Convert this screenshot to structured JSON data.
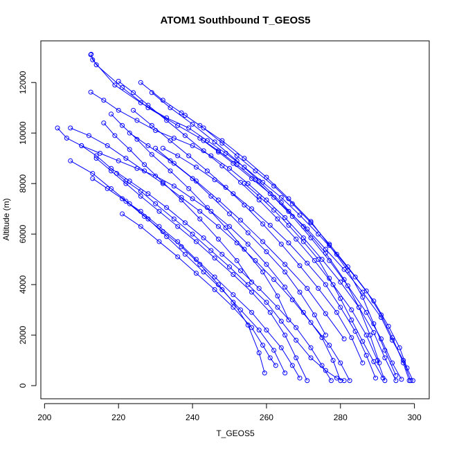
{
  "chart_data": {
    "type": "line",
    "title": "ATOM1 Southbound T_GEOS5",
    "xlabel": "T_GEOS5",
    "ylabel": "Altitude (m)",
    "xlim": [
      199,
      304
    ],
    "ylim": [
      -520,
      13650
    ],
    "xticks": [
      200,
      220,
      240,
      260,
      280,
      300
    ],
    "yticks": [
      0,
      2000,
      4000,
      6000,
      8000,
      10000,
      12000
    ],
    "xtick_labels": [
      "200",
      "220",
      "240",
      "260",
      "280",
      "300"
    ],
    "ytick_labels": [
      "0",
      "2000",
      "4000",
      "6000",
      "8000",
      "10000",
      "12000"
    ],
    "grid": false,
    "legend": "none",
    "marker": "open-circle",
    "color": "#0000FF",
    "series": [
      {
        "x": [
          212.6,
          213,
          219,
          226,
          233,
          239,
          244,
          249,
          254,
          259,
          264,
          269,
          274,
          279,
          284,
          289,
          293,
          296,
          298,
          299.6
        ],
        "y": [
          13120,
          12900,
          11900,
          11200,
          10600,
          10200,
          9700,
          9200,
          8650,
          8050,
          7450,
          6750,
          6000,
          5200,
          4300,
          3350,
          2350,
          1500,
          700,
          200
        ]
      },
      {
        "x": [
          212.5,
          214,
          221,
          228,
          236,
          242,
          247,
          251,
          256,
          261,
          266,
          271,
          276,
          281,
          286,
          291,
          294,
          297,
          299
        ],
        "y": [
          13100,
          12700,
          11800,
          11000,
          10300,
          9800,
          9250,
          8800,
          8200,
          7600,
          6900,
          6200,
          5400,
          4600,
          3700,
          2700,
          1800,
          1000,
          200
        ]
      },
      {
        "x": [
          226,
          232,
          238,
          243,
          248,
          252,
          257,
          262,
          267,
          272,
          277,
          282,
          287,
          291,
          294,
          297,
          298.6
        ],
        "y": [
          12000,
          11300,
          10700,
          10200,
          9600,
          9100,
          8500,
          7900,
          7200,
          6450,
          5600,
          4700,
          3750,
          2800,
          1900,
          900,
          200
        ]
      },
      {
        "x": [
          212.5,
          216,
          220,
          225,
          230,
          235,
          240,
          245,
          250,
          255,
          260,
          265,
          270,
          275,
          280,
          285,
          289,
          292,
          295
        ],
        "y": [
          11620,
          11300,
          10900,
          10500,
          10100,
          9800,
          9500,
          9100,
          8600,
          8000,
          7350,
          6650,
          5850,
          5000,
          4100,
          3100,
          2100,
          1100,
          200
        ]
      },
      {
        "x": [
          220,
          224,
          228,
          233,
          238,
          243,
          248,
          253,
          258,
          263,
          268,
          273,
          278,
          283,
          287,
          290,
          292
        ],
        "y": [
          12050,
          11600,
          11100,
          10500,
          9900,
          9300,
          8700,
          8050,
          7350,
          6600,
          5800,
          4950,
          4000,
          3000,
          2000,
          1000,
          200
        ]
      },
      {
        "x": [
          203.5,
          206,
          210,
          215,
          220,
          225,
          230,
          235,
          240,
          245,
          250,
          255,
          260,
          265,
          270,
          275,
          278,
          280
        ],
        "y": [
          10200,
          9800,
          9500,
          9200,
          8900,
          8600,
          8300,
          7900,
          7400,
          6900,
          6300,
          5600,
          4800,
          3900,
          2900,
          1900,
          1000,
          200
        ]
      },
      {
        "x": [
          207,
          212,
          217,
          222,
          227,
          232,
          237,
          242,
          247,
          252,
          257,
          262,
          267,
          272,
          277,
          280,
          282.5
        ],
        "y": [
          10200,
          9900,
          9500,
          9000,
          8500,
          8000,
          7450,
          6900,
          6300,
          5650,
          4950,
          4200,
          3400,
          2500,
          1600,
          900,
          200
        ]
      },
      {
        "x": [
          210,
          214,
          218,
          223,
          228,
          233,
          238,
          243,
          248,
          253,
          258,
          263,
          268,
          272,
          275,
          277.5
        ],
        "y": [
          9500,
          9100,
          8600,
          8100,
          7600,
          7050,
          6450,
          5850,
          5200,
          4550,
          3850,
          3100,
          2300,
          1500,
          800,
          200
        ]
      },
      {
        "x": [
          214,
          218,
          222,
          226,
          231,
          236,
          241,
          246,
          251,
          256,
          261,
          265,
          268,
          271
        ],
        "y": [
          9000,
          8500,
          8000,
          7500,
          6900,
          6300,
          5700,
          5050,
          4400,
          3700,
          2900,
          2000,
          1100,
          200
        ]
      },
      {
        "x": [
          219.5,
          222,
          226,
          230,
          235,
          240,
          245,
          250,
          255,
          260,
          264,
          268,
          272,
          276,
          279,
          281
        ],
        "y": [
          8400,
          8100,
          7700,
          7200,
          6600,
          6000,
          5350,
          4700,
          4000,
          3300,
          2550,
          1800,
          1100,
          600,
          300,
          200
        ]
      },
      {
        "x": [
          221,
          226,
          231,
          236,
          241,
          246,
          251,
          256,
          260,
          264,
          267,
          269
        ],
        "y": [
          7400,
          6900,
          6300,
          5700,
          5000,
          4300,
          3600,
          2900,
          2200,
          1500,
          800,
          300
        ]
      },
      {
        "x": [
          207,
          213,
          218,
          223,
          228,
          233,
          238,
          243,
          248,
          253,
          258,
          262,
          265
        ],
        "y": [
          8900,
          8400,
          7800,
          7200,
          6600,
          5900,
          5200,
          4500,
          3800,
          3000,
          2200,
          1400,
          500
        ]
      },
      {
        "x": [
          221,
          226,
          231,
          236,
          241,
          246,
          251,
          256,
          259,
          261,
          262.5
        ],
        "y": [
          6800,
          6300,
          5700,
          5100,
          4450,
          3800,
          3100,
          2300,
          1600,
          1100,
          800
        ]
      },
      {
        "x": [
          213,
          217,
          222,
          227,
          232,
          237,
          242,
          247,
          251,
          255,
          258,
          259.5
        ],
        "y": [
          8200,
          7800,
          7300,
          6700,
          6100,
          5500,
          4800,
          4000,
          3300,
          2400,
          1300,
          500
        ]
      },
      {
        "x": [
          223,
          228,
          234,
          240,
          245,
          250,
          255,
          260,
          265,
          269,
          273,
          276
        ],
        "y": [
          10000,
          9500,
          8900,
          8200,
          7500,
          6800,
          6050,
          5300,
          4500,
          3700,
          2800,
          2000
        ]
      },
      {
        "x": [
          232,
          236,
          241,
          246,
          251,
          256,
          261,
          266,
          271,
          276,
          280,
          284,
          287,
          289.5
        ],
        "y": [
          9400,
          9100,
          8650,
          8150,
          7600,
          7000,
          6350,
          5650,
          4850,
          4000,
          3100,
          2150,
          1200,
          300
        ]
      },
      {
        "x": [
          224,
          229,
          234,
          239,
          244,
          249,
          254,
          259,
          264,
          269,
          274,
          279,
          283,
          286
        ],
        "y": [
          10900,
          10300,
          9700,
          9100,
          8500,
          7850,
          7150,
          6400,
          5600,
          4750,
          3850,
          2900,
          1900,
          900
        ]
      },
      {
        "x": [
          229,
          234,
          240,
          246,
          252,
          258,
          264,
          270,
          276,
          281,
          285,
          288,
          290.5
        ],
        "y": [
          11600,
          11000,
          10350,
          9650,
          8900,
          8100,
          7250,
          6300,
          5250,
          4200,
          3100,
          2000,
          900
        ]
      },
      {
        "x": [
          237,
          242,
          248,
          254,
          260,
          266,
          272,
          277,
          282,
          286,
          289,
          292,
          295
        ],
        "y": [
          10800,
          10300,
          9700,
          9000,
          8250,
          7400,
          6500,
          5550,
          4550,
          3500,
          2450,
          1400,
          400
        ]
      },
      {
        "x": [
          218,
          221,
          225,
          229,
          234,
          239,
          244,
          249,
          254,
          259,
          263,
          266
        ],
        "y": [
          10750,
          10300,
          9750,
          9150,
          8500,
          7800,
          7050,
          6250,
          5400,
          4500,
          3550,
          2600
        ]
      },
      {
        "x": [
          216,
          219,
          223,
          227,
          232,
          237,
          242,
          247,
          252,
          256
        ],
        "y": [
          10400,
          9900,
          9350,
          8750,
          8050,
          7350,
          6600,
          5800,
          4950,
          4100
        ]
      },
      {
        "x": [
          243,
          247,
          252,
          257,
          262,
          267,
          272,
          277,
          282,
          287,
          291,
          294,
          296.5
        ],
        "y": [
          9700,
          9300,
          8750,
          8150,
          7450,
          6700,
          5850,
          4950,
          3950,
          2900,
          1850,
          900,
          250
        ]
      },
      {
        "x": [
          230,
          235,
          241,
          247,
          253,
          259,
          265,
          271,
          276,
          281
        ],
        "y": [
          9400,
          8800,
          8100,
          7350,
          6550,
          5700,
          4800,
          3850,
          2850,
          1850
        ]
      },
      {
        "x": [
          254,
          258,
          262,
          266,
          270,
          274,
          277,
          280,
          283,
          286,
          289,
          291.5
        ],
        "y": [
          8000,
          7500,
          6950,
          6350,
          5700,
          5000,
          4250,
          3450,
          2600,
          1750,
          950,
          300
        ]
      }
    ]
  }
}
